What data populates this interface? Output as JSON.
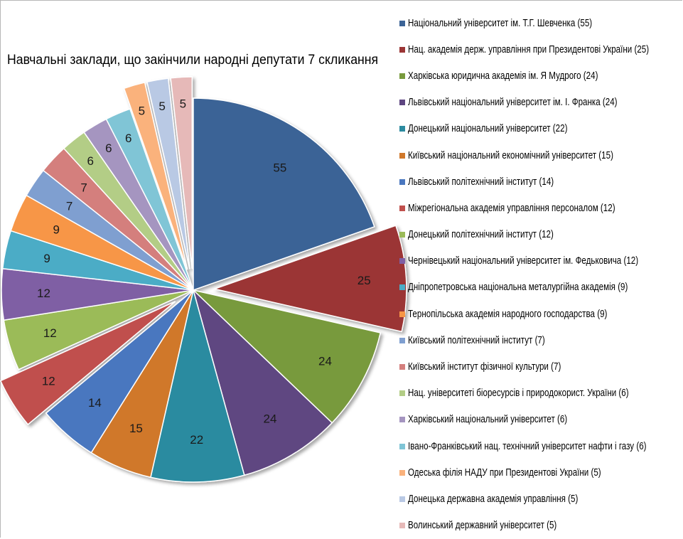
{
  "chart_data": {
    "type": "pie",
    "title": "Навчальні заклади, що закінчили народні депутати 7 скликання",
    "legend_position": "right",
    "slices": [
      {
        "label": "Національний університет ім. Т.Г. Шевченка (55)",
        "value": 55,
        "color": "#3b6396",
        "exploded": false
      },
      {
        "label": "Нац. академія держ. управління при Президентові України (25)",
        "value": 25,
        "color": "#9b3535",
        "exploded": true
      },
      {
        "label": "Харківська юридична академія ім. Я Мудрого (24)",
        "value": 24,
        "color": "#789a3d",
        "exploded": false
      },
      {
        "label": "Львівський національний університет ім. І. Франка (24)",
        "value": 24,
        "color": "#5e4681",
        "exploded": false
      },
      {
        "label": "Донецький національний університет (22)",
        "value": 22,
        "color": "#2c8ba0",
        "exploded": false
      },
      {
        "label": "Київський національний економічний університет (15)",
        "value": 15,
        "color": "#d0782b",
        "exploded": false
      },
      {
        "label": "Львівський політехнічний інститут (14)",
        "value": 14,
        "color": "#4a77bf",
        "exploded": false
      },
      {
        "label": "Міжрегіональна академія управління персоналом (12)",
        "value": 12,
        "color": "#c0504d",
        "exploded": true
      },
      {
        "label": "Донецький політехнічний інститут (12)",
        "value": 12,
        "color": "#9bbb59",
        "exploded": false
      },
      {
        "label": "Чернівецький національний університет ім. Федьковича (12)",
        "value": 12,
        "color": "#7f5fa4",
        "exploded": false
      },
      {
        "label": "Дніпропетровська національна металургійна академія (9)",
        "value": 9,
        "color": "#4bacc6",
        "exploded": false
      },
      {
        "label": "Тернопільська академія народного господарства (9)",
        "value": 9,
        "color": "#f79646",
        "exploded": false
      },
      {
        "label": "Київський політехнічний інститут (7)",
        "value": 7,
        "color": "#7f9fd0",
        "exploded": false
      },
      {
        "label": "Київський інститут фізичної культури (7)",
        "value": 7,
        "color": "#d47f7d",
        "exploded": false
      },
      {
        "label": "Нац. університеті біоресурсів і природокорист. України (6)",
        "value": 6,
        "color": "#b3cd86",
        "exploded": false
      },
      {
        "label": "Харківський національний університет (6)",
        "value": 6,
        "color": "#a595c0",
        "exploded": false
      },
      {
        "label": "Івано-Франківський нац. технічний університет нафти і газу (6)",
        "value": 6,
        "color": "#80c5d6",
        "exploded": false
      },
      {
        "label": "Одеська філія НАДУ при Президентові України (5)",
        "value": 5,
        "color": "#fab27c",
        "exploded": true
      },
      {
        "label": "Донецька державна академія управління (5)",
        "value": 5,
        "color": "#b9c9e4",
        "exploded": true
      },
      {
        "label": "Волинський державний університет (5)",
        "value": 5,
        "color": "#e6b9b8",
        "exploded": true
      }
    ]
  }
}
